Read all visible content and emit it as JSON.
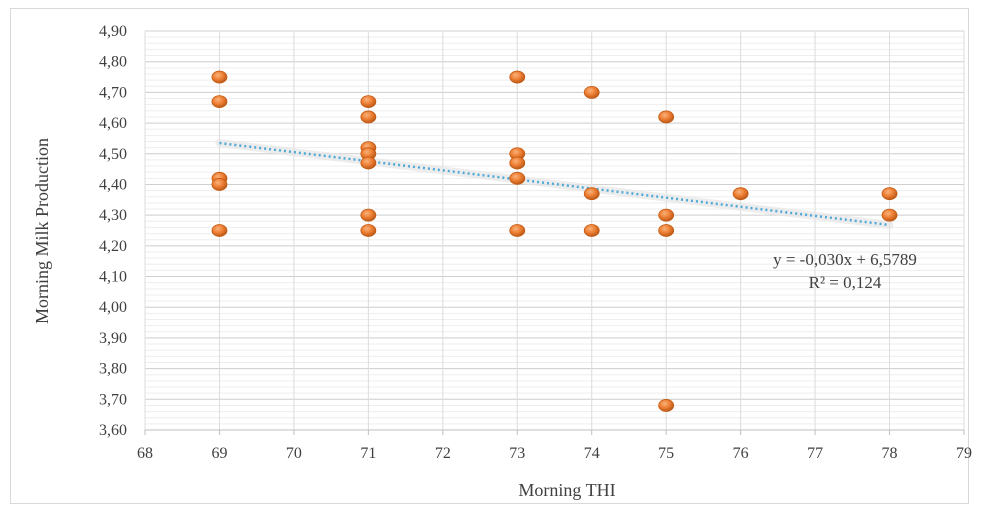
{
  "chart_data": {
    "type": "scatter",
    "xlabel": "Morning THI",
    "ylabel": "Morning Milk Production",
    "xlim": [
      68,
      79
    ],
    "ylim": [
      3.6,
      4.9
    ],
    "x_ticks": [
      68,
      69,
      70,
      71,
      72,
      73,
      74,
      75,
      76,
      77,
      78,
      79
    ],
    "x_tick_labels": [
      "68",
      "69",
      "70",
      "71",
      "72",
      "73",
      "74",
      "75",
      "76",
      "77",
      "78",
      "79"
    ],
    "y_ticks": [
      3.6,
      3.7,
      3.8,
      3.9,
      4.0,
      4.1,
      4.2,
      4.3,
      4.4,
      4.5,
      4.6,
      4.7,
      4.8,
      4.9
    ],
    "y_tick_labels": [
      "3,60",
      "3,70",
      "3,80",
      "3,90",
      "4,00",
      "4,10",
      "4,20",
      "4,30",
      "4,40",
      "4,50",
      "4,60",
      "4,70",
      "4,80",
      "4,90"
    ],
    "grid": true,
    "marker_color": "#ED7D31",
    "trendline_color": "#4FA9D8",
    "points": [
      {
        "x": 69,
        "y": 4.75
      },
      {
        "x": 69,
        "y": 4.67
      },
      {
        "x": 69,
        "y": 4.42
      },
      {
        "x": 69,
        "y": 4.4
      },
      {
        "x": 69,
        "y": 4.25
      },
      {
        "x": 71,
        "y": 4.67
      },
      {
        "x": 71,
        "y": 4.62
      },
      {
        "x": 71,
        "y": 4.52
      },
      {
        "x": 71,
        "y": 4.5
      },
      {
        "x": 71,
        "y": 4.47
      },
      {
        "x": 71,
        "y": 4.3
      },
      {
        "x": 71,
        "y": 4.25
      },
      {
        "x": 73,
        "y": 4.75
      },
      {
        "x": 73,
        "y": 4.5
      },
      {
        "x": 73,
        "y": 4.47
      },
      {
        "x": 73,
        "y": 4.42
      },
      {
        "x": 73,
        "y": 4.25
      },
      {
        "x": 74,
        "y": 4.7
      },
      {
        "x": 74,
        "y": 4.37
      },
      {
        "x": 74,
        "y": 4.25
      },
      {
        "x": 75,
        "y": 4.62
      },
      {
        "x": 75,
        "y": 4.3
      },
      {
        "x": 75,
        "y": 4.25
      },
      {
        "x": 75,
        "y": 3.68
      },
      {
        "x": 76,
        "y": 4.37
      },
      {
        "x": 78,
        "y": 4.37
      },
      {
        "x": 78,
        "y": 4.3
      }
    ],
    "trendline": {
      "type": "linear",
      "x_range": [
        69,
        78
      ],
      "y_values": [
        4.535,
        4.268
      ],
      "equation": "y = -0,030x + 6,5789",
      "r_squared": "R² = 0,124"
    }
  }
}
